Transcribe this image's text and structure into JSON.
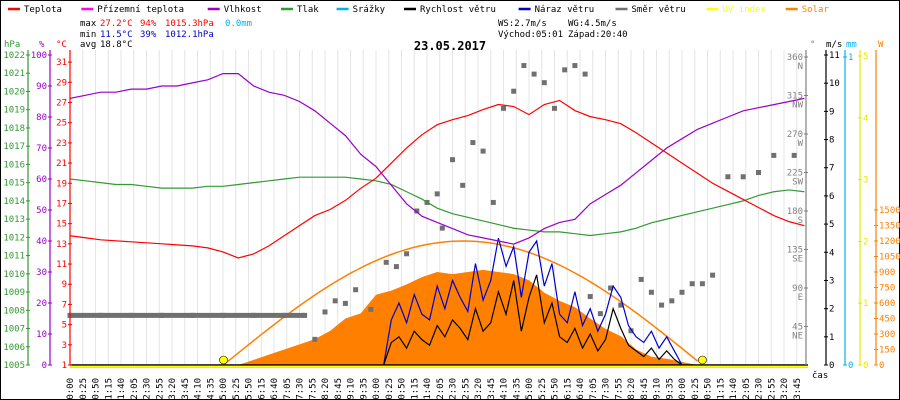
{
  "chart_data": {
    "type": "line",
    "title": "23.05.2017",
    "legend_position": "top",
    "legend": [
      {
        "label": "Teplota",
        "color": "#ff0000"
      },
      {
        "label": "Přízemní teplota",
        "color": "#ff00ff"
      },
      {
        "label": "Vlhkost",
        "color": "#9900cc"
      },
      {
        "label": "Tlak",
        "color": "#339933"
      },
      {
        "label": "Srážky",
        "color": "#00b0f0"
      },
      {
        "label": "Rychlost větru",
        "color": "#000000"
      },
      {
        "label": "Náraz větru",
        "color": "#0000cc"
      },
      {
        "label": "Směr větru",
        "color": "#707070"
      },
      {
        "label": "UV index",
        "color": "#ffff00"
      },
      {
        "label": "Solar",
        "color": "#ff8000"
      }
    ],
    "stats": {
      "max_label": "max",
      "min_label": "min",
      "avg_label": "avg",
      "max_temp": "27.2°C",
      "max_hum": "94%",
      "max_press": "1015.3hPa",
      "max_rain": "0.0mm",
      "min_temp": "11.5°C",
      "min_hum": "39%",
      "min_press": "1012.1hPa",
      "avg_temp": "18.8°C",
      "ws": "WS:2.7m/s",
      "wg": "WG:4.5m/s",
      "sunrise": "Východ:05:01",
      "sunset": "Západ:20:40"
    },
    "axes": {
      "pressure": {
        "unit": "hPa",
        "range": [
          1005,
          1022
        ],
        "ticks": [
          "1005",
          "1006",
          "1007",
          "1008",
          "1009",
          "1010",
          "1011",
          "1012",
          "1013",
          "1014",
          "1015",
          "1016",
          "1017",
          "1018",
          "1019",
          "1020",
          "1021",
          "1022"
        ]
      },
      "humidity": {
        "unit": "%",
        "range": [
          0,
          100
        ],
        "ticks": [
          "0",
          "10",
          "20",
          "30",
          "40",
          "50",
          "60",
          "70",
          "80",
          "90",
          "100"
        ]
      },
      "temperature": {
        "unit": "°C",
        "range": [
          1,
          32
        ],
        "ticks": [
          "1",
          "3",
          "5",
          "7",
          "9",
          "11",
          "13",
          "15",
          "17",
          "19",
          "21",
          "23",
          "25",
          "27",
          "29",
          "31"
        ]
      },
      "direction": {
        "unit": "°",
        "range": [
          0,
          360
        ],
        "ticks": [
          [
            "45",
            "NE"
          ],
          [
            "90",
            "E"
          ],
          [
            "135",
            "SE"
          ],
          [
            "180",
            "S"
          ],
          [
            "225",
            "SW"
          ],
          [
            "270",
            "W"
          ],
          [
            "315",
            "NW"
          ],
          [
            "360",
            "N"
          ]
        ]
      },
      "wind": {
        "unit": "m/s",
        "range": [
          0,
          11
        ],
        "ticks": [
          "0",
          "1",
          "2",
          "3",
          "4",
          "5",
          "6",
          "7",
          "8",
          "9",
          "10",
          "11"
        ]
      },
      "rain": {
        "unit": "mm",
        "range": [
          0,
          1
        ],
        "ticks": [
          "0",
          "1"
        ]
      },
      "uv": {
        "unit": "",
        "range": [
          0,
          5
        ],
        "ticks": [
          "0",
          "1",
          "2",
          "3",
          "4",
          "5"
        ]
      },
      "solar": {
        "unit": "W",
        "range": [
          0,
          1500
        ],
        "ticks": [
          "0",
          "150",
          "300",
          "450",
          "600",
          "750",
          "900",
          "1050",
          "1200",
          "1350",
          "1500"
        ]
      },
      "x": {
        "label": "čas",
        "ticks": [
          "00:00",
          "00:25",
          "00:50",
          "01:15",
          "01:40",
          "02:05",
          "02:30",
          "02:55",
          "03:20",
          "03:45",
          "04:10",
          "04:35",
          "05:00",
          "05:25",
          "05:50",
          "06:15",
          "06:40",
          "07:05",
          "07:30",
          "07:55",
          "08:20",
          "08:45",
          "09:10",
          "09:35",
          "10:00",
          "10:25",
          "10:50",
          "11:15",
          "11:40",
          "12:05",
          "12:30",
          "12:55",
          "13:20",
          "13:45",
          "14:10",
          "14:35",
          "15:00",
          "15:25",
          "15:50",
          "16:15",
          "16:40",
          "17:05",
          "17:30",
          "17:55",
          "18:20",
          "18:45",
          "19:10",
          "19:35",
          "20:00",
          "20:25",
          "20:50",
          "21:15",
          "21:40",
          "22:05",
          "22:30",
          "22:55",
          "23:20",
          "23:45"
        ]
      }
    },
    "x_step_minutes": 30,
    "temperature": [
      13.8,
      13.6,
      13.4,
      13.3,
      13.2,
      13.1,
      13.0,
      12.9,
      12.8,
      12.6,
      12.2,
      11.6,
      12.0,
      12.8,
      13.8,
      14.8,
      15.8,
      16.4,
      17.3,
      18.5,
      19.5,
      21.0,
      22.5,
      23.8,
      24.8,
      25.3,
      25.7,
      26.3,
      26.8,
      26.6,
      25.8,
      26.8,
      27.2,
      26.2,
      25.6,
      25.3,
      24.9,
      24.0,
      23.0,
      22.0,
      21.0,
      20.0,
      19.0,
      18.2,
      17.4,
      16.6,
      15.8,
      15.2,
      14.8
    ],
    "humidity": [
      86,
      87,
      88,
      88,
      89,
      89,
      90,
      90,
      91,
      92,
      94,
      94,
      90,
      88,
      87,
      85,
      82,
      78,
      74,
      68,
      64,
      58,
      52,
      48,
      46,
      44,
      42,
      41,
      40,
      39,
      41,
      44,
      46,
      47,
      52,
      55,
      58,
      62,
      66,
      70,
      73,
      76,
      78,
      80,
      82,
      83,
      84,
      85,
      86
    ],
    "pressure": [
      1015.2,
      1015.1,
      1015.0,
      1014.9,
      1014.9,
      1014.8,
      1014.7,
      1014.7,
      1014.7,
      1014.8,
      1014.8,
      1014.9,
      1015.0,
      1015.1,
      1015.2,
      1015.3,
      1015.3,
      1015.3,
      1015.3,
      1015.2,
      1015.1,
      1014.9,
      1014.5,
      1014.1,
      1013.6,
      1013.3,
      1013.1,
      1012.9,
      1012.7,
      1012.5,
      1012.4,
      1012.3,
      1012.3,
      1012.2,
      1012.1,
      1012.2,
      1012.3,
      1012.5,
      1012.8,
      1013.0,
      1013.2,
      1013.4,
      1013.6,
      1013.8,
      1014.0,
      1014.3,
      1014.5,
      1014.6,
      1014.5
    ],
    "solar": [
      0,
      0,
      0,
      0,
      0,
      0,
      0,
      0,
      0,
      0,
      0,
      0,
      50,
      100,
      150,
      200,
      250,
      330,
      450,
      500,
      680,
      720,
      780,
      850,
      900,
      880,
      900,
      920,
      900,
      880,
      820,
      700,
      620,
      560,
      450,
      350,
      280,
      150,
      80,
      60,
      30,
      0,
      0,
      0,
      0,
      0,
      0,
      0,
      0
    ],
    "solar_theoretical_peak": 1200,
    "wind_start_minute": 630,
    "wind_step_minutes": 15,
    "wind_speed": [
      0.8,
      1.0,
      0.6,
      1.2,
      0.9,
      0.7,
      1.4,
      1.0,
      1.6,
      1.3,
      0.9,
      2.0,
      1.2,
      1.5,
      2.6,
      1.8,
      3.0,
      1.2,
      2.4,
      3.2,
      1.5,
      2.2,
      1.0,
      0.8,
      1.3,
      0.6,
      1.1,
      0.5,
      0.9,
      2.0,
      1.3,
      0.7,
      0.5,
      0.3,
      0.6,
      0.2,
      0.5,
      0.2
    ],
    "wind_gust": [
      1.6,
      2.2,
      1.5,
      2.5,
      1.8,
      1.6,
      2.8,
      2.0,
      3.0,
      2.4,
      1.9,
      3.6,
      2.3,
      3.0,
      4.5,
      3.5,
      4.2,
      2.4,
      4.0,
      4.4,
      2.8,
      3.6,
      1.8,
      1.5,
      2.6,
      1.4,
      2.0,
      1.2,
      1.8,
      2.8,
      2.4,
      1.4,
      1.0,
      0.8,
      1.2,
      0.6,
      1.0,
      0.5
    ],
    "wind_direction": [
      [
        0,
        58
      ],
      [
        60,
        58
      ],
      [
        120,
        58
      ],
      [
        180,
        58
      ],
      [
        240,
        58
      ],
      [
        300,
        58
      ],
      [
        360,
        58
      ],
      [
        420,
        58
      ],
      [
        460,
        58
      ],
      [
        480,
        30
      ],
      [
        500,
        62
      ],
      [
        520,
        75
      ],
      [
        540,
        72
      ],
      [
        560,
        88
      ],
      [
        590,
        65
      ],
      [
        620,
        120
      ],
      [
        640,
        115
      ],
      [
        660,
        130
      ],
      [
        680,
        180
      ],
      [
        700,
        190
      ],
      [
        720,
        200
      ],
      [
        730,
        160
      ],
      [
        750,
        240
      ],
      [
        770,
        210
      ],
      [
        790,
        260
      ],
      [
        810,
        250
      ],
      [
        830,
        190
      ],
      [
        850,
        300
      ],
      [
        870,
        320
      ],
      [
        890,
        350
      ],
      [
        910,
        340
      ],
      [
        930,
        330
      ],
      [
        950,
        300
      ],
      [
        970,
        345
      ],
      [
        990,
        350
      ],
      [
        1010,
        340
      ],
      [
        1020,
        80
      ],
      [
        1040,
        60
      ],
      [
        1060,
        90
      ],
      [
        1080,
        70
      ],
      [
        1100,
        40
      ],
      [
        1120,
        100
      ],
      [
        1140,
        85
      ],
      [
        1160,
        70
      ],
      [
        1180,
        75
      ],
      [
        1200,
        85
      ],
      [
        1220,
        95
      ],
      [
        1240,
        95
      ],
      [
        1260,
        105
      ],
      [
        1290,
        220
      ],
      [
        1320,
        220
      ],
      [
        1350,
        225
      ],
      [
        1380,
        245
      ],
      [
        1420,
        245
      ]
    ],
    "rain": 0.0,
    "uv": 0
  }
}
